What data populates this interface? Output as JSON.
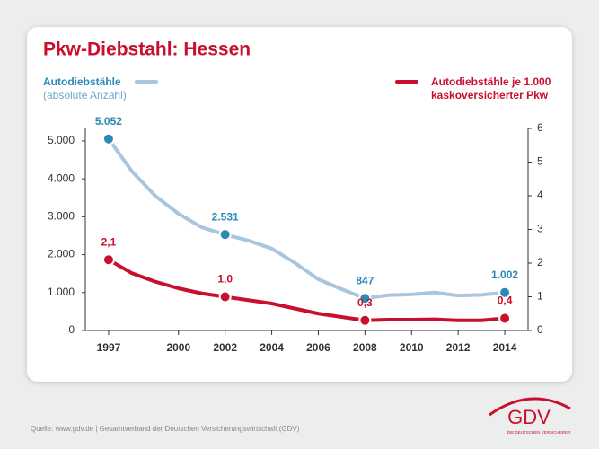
{
  "chart_data": {
    "type": "line",
    "title": "Pkw-Diebstahl: Hessen",
    "x": [
      1997,
      1998,
      1999,
      2000,
      2001,
      2002,
      2003,
      2004,
      2005,
      2006,
      2007,
      2008,
      2009,
      2010,
      2011,
      2012,
      2013,
      2014
    ],
    "xlim": [
      1996,
      2015
    ],
    "xticks": [
      1997,
      2000,
      2002,
      2004,
      2006,
      2008,
      2010,
      2012,
      2014
    ],
    "ylim": [
      0,
      5330
    ],
    "yticks": [
      0,
      {
        "value": 1000,
        "label": "1.000"
      },
      {
        "value": 2000,
        "label": "2.000"
      },
      {
        "value": 3000,
        "label": "3.000"
      },
      {
        "value": 4000,
        "label": "4.000"
      },
      {
        "value": 5000,
        "label": "5.000"
      }
    ],
    "y2lim": [
      0,
      6
    ],
    "y2ticks": [
      0,
      1,
      2,
      3,
      4,
      5,
      6
    ],
    "series": [
      {
        "name": "Autodiebstähle",
        "note": "(absolute Anzahl)",
        "color": "#a9c6de",
        "marker_color": "#2a89b5",
        "values": [
          5052,
          4200,
          3550,
          3080,
          2720,
          2531,
          2370,
          2160,
          1780,
          1350,
          1090,
          847,
          930,
          950,
          1000,
          920,
          940,
          1002
        ],
        "value_labels": [
          "5.052",
          null,
          null,
          null,
          null,
          "2.531",
          null,
          null,
          null,
          null,
          null,
          "847",
          null,
          null,
          null,
          null,
          null,
          "1.002"
        ]
      },
      {
        "name": "Autodiebstähle je 1.000 kaskoversicherter Pkw",
        "color": "#c8102e",
        "marker_color": "#c8102e",
        "axis": "y2",
        "values": [
          2.1,
          1.7,
          1.45,
          1.25,
          1.1,
          1.0,
          0.9,
          0.8,
          0.65,
          0.5,
          0.4,
          0.3,
          0.32,
          0.32,
          0.33,
          0.3,
          0.3,
          0.36
        ],
        "value_labels": [
          "2,1",
          null,
          null,
          null,
          null,
          "1,0",
          null,
          null,
          null,
          null,
          null,
          "0,3",
          null,
          null,
          null,
          null,
          null,
          "0,4"
        ]
      }
    ]
  },
  "footer": {
    "source": "Quelle: www.gdv.de | Gesamtverband der Deutschen Versicherungswirtschaft (GDV)"
  },
  "logo": {
    "text": "GDV",
    "tagline": "DIE DEUTSCHEN VERSICHERER"
  }
}
